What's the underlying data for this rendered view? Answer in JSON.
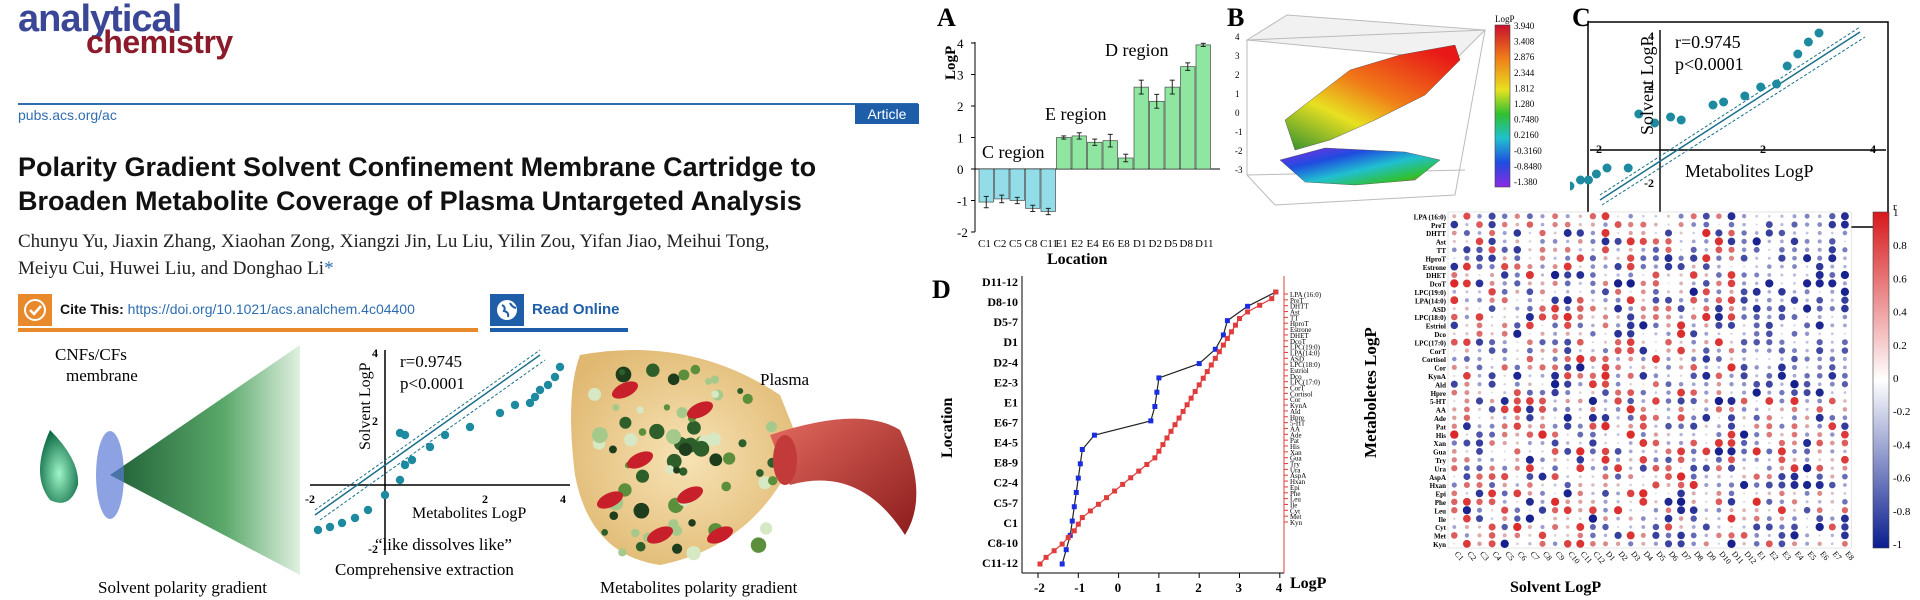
{
  "journal": {
    "logo_line1": "analytical",
    "logo_line2": "chemistry",
    "url": "pubs.acs.org/ac",
    "article_type": "Article"
  },
  "paper": {
    "title_line1": "Polarity Gradient Solvent Confinement Membrane Cartridge to",
    "title_line2": "Broaden Metabolite Coverage of Plasma Untargeted Analysis",
    "authors_line1": "Chunyu Yu, Jiaxin Zhang, Xiaohan Zong, Xiangzi Jin, Lu Liu, Yilin Zou, Yifan Jiao, Meihui Tong,",
    "authors_line2": "Meiyu Cui, Huwei Liu, and Donghao Li",
    "corresponding_mark": "*"
  },
  "cite": {
    "label": "Cite This:",
    "doi": "https://doi.org/10.1021/acs.analchem.4c04400"
  },
  "read_online": {
    "label": "Read Online"
  },
  "graphic": {
    "membrane_label_1": "CNFs/CFs",
    "membrane_label_2": "membrane",
    "caption_left": "Solvent polarity gradient",
    "inset_r": "r=0.9745",
    "inset_p": "p<0.0001",
    "inset_ylabel": "Solvent LogP",
    "inset_xlabel": "Metabolites   LogP",
    "inset_ticks_x": [
      "-2",
      "2",
      "4"
    ],
    "inset_ticks_y": [
      "4",
      "2",
      "-2"
    ],
    "slogan_1": "“like dissolves like”",
    "slogan_2": "Comprehensive extraction",
    "plasma_label": "Plasma",
    "caption_right": "Metabolites polarity gradient"
  },
  "chart_data": [
    {
      "id": "A",
      "panel_label": "A",
      "type": "bar",
      "ylabel": "LogP",
      "xlabel": "Location",
      "ylim": [
        -2,
        4
      ],
      "yticks": [
        "4",
        "3",
        "2",
        "1",
        "0",
        "-1",
        "-2"
      ],
      "categories": [
        "C1",
        "C2",
        "C5",
        "C8",
        "C11",
        "E1",
        "E2",
        "E4",
        "E6",
        "E8",
        "D1",
        "D2",
        "D5",
        "D8",
        "D11"
      ],
      "values": [
        -1.05,
        -0.95,
        -1.0,
        -1.25,
        -1.35,
        1.0,
        1.05,
        0.85,
        0.9,
        0.35,
        2.6,
        2.15,
        2.6,
        3.25,
        3.94
      ],
      "errors": [
        0.18,
        0.12,
        0.1,
        0.1,
        0.1,
        0.05,
        0.1,
        0.1,
        0.2,
        0.12,
        0.22,
        0.22,
        0.22,
        0.12,
        0.05
      ],
      "region_labels": [
        "C region",
        "E region",
        "D region"
      ]
    },
    {
      "id": "B",
      "panel_label": "B",
      "type": "heatmap",
      "colorbar_title": "LogP",
      "colorbar_ticks": [
        "3.940",
        "3.408",
        "2.876",
        "2.344",
        "1.812",
        "1.280",
        "0.7480",
        "0.2160",
        "-0.3160",
        "-0.8480",
        "-1.380"
      ],
      "zticks": [
        "4",
        "3",
        "2",
        "1",
        "0",
        "-1",
        "-2",
        "-3"
      ]
    },
    {
      "id": "C",
      "panel_label": "C",
      "type": "scatter",
      "annotation_r": "r=0.9745",
      "annotation_p": "p<0.0001",
      "ylabel": "Solvent LogP",
      "xlabel": "Metabolites   LogP",
      "xticks": [
        "-2",
        "2",
        "4"
      ],
      "yticks": [
        "4",
        "2",
        "-2"
      ],
      "x": [
        -1.9,
        -1.7,
        -1.5,
        -1.35,
        -1.2,
        -1.0,
        -0.6,
        -0.4,
        -0.1,
        0.2,
        0.4,
        1.0,
        1.2,
        1.6,
        1.9,
        2.2,
        2.4,
        2.6,
        2.8,
        3.0
      ],
      "y": [
        -1.3,
        -1.2,
        -1.0,
        -1.0,
        -0.8,
        -0.6,
        -0.6,
        1.2,
        0.9,
        1.1,
        1.0,
        1.5,
        1.6,
        1.8,
        2.1,
        2.2,
        2.8,
        3.2,
        3.6,
        3.9
      ]
    },
    {
      "id": "D",
      "panel_label": "D",
      "type": "line",
      "ylabel": "Location",
      "xlabel": "LogP",
      "xticks": [
        "-2",
        "-1",
        "0",
        "1",
        "2",
        "3",
        "4"
      ],
      "xlim": [
        -2,
        4
      ],
      "y_categories": [
        "C11-12",
        "C8-10",
        "C1",
        "C5-7",
        "C2-4",
        "E8-9",
        "E4-5",
        "E6-7",
        "E1",
        "E2-3",
        "D2-4",
        "D1",
        "D5-7",
        "D8-10",
        "D11-12"
      ],
      "right_labels": [
        "LPA (16:0)",
        "PreT",
        "DHTT",
        "Ast",
        "TT",
        "HproT",
        "Estrone",
        "DHET",
        "DcoT",
        "LPC(19:0)",
        "LPA(14:0)",
        "ASD",
        "LPC(18:0)",
        "Estriol",
        "Dco",
        "LPC(17:0)",
        "CorT",
        "Cortisol",
        "Cor",
        "KynA",
        "Ald",
        "Hpre",
        "5-HT",
        "AA",
        "Ade",
        "Pat",
        "His",
        "Xan",
        "Gua",
        "Try",
        "Ura",
        "AspA",
        "Hxan",
        "Epi",
        "Phe",
        "Leu",
        "Ile",
        "Cyt",
        "Met",
        "Kyn"
      ],
      "series": [
        {
          "x": [
            -1.4,
            -1.3,
            -1.2,
            -1.15,
            -1.1,
            -1.05,
            -1.0,
            -0.95,
            -0.9,
            -0.6,
            0.8,
            0.9,
            0.95,
            1.0,
            2.0,
            2.4,
            2.6,
            2.7,
            3.2,
            3.9
          ]
        },
        {
          "x": [
            -1.95,
            -1.8,
            -1.6,
            -1.4,
            -1.25,
            -1.1,
            -1.0,
            -0.9,
            -0.7,
            -0.5,
            -0.3,
            -0.1,
            0.1,
            0.3,
            0.5,
            0.7,
            0.9,
            1.0,
            1.1,
            1.2,
            1.3,
            1.4,
            1.5,
            1.6,
            1.7,
            1.8,
            1.9,
            2.0,
            2.1,
            2.2,
            2.3,
            2.4,
            2.5,
            2.6,
            2.7,
            2.8,
            2.9,
            3.0,
            3.2,
            3.5,
            3.8,
            3.9
          ]
        }
      ]
    },
    {
      "id": "E",
      "panel_label": "E",
      "type": "heatmap",
      "colorbar_title": "r",
      "colorbar_ticks": [
        "1",
        "0.8",
        "0.6",
        "0.4",
        "0.2",
        "0",
        "-0.2",
        "-0.4",
        "-0.6",
        "-0.8",
        "-1"
      ],
      "ylabel": "Metaboletes LogP",
      "xlabel": "Solvent LogP",
      "rows": [
        "LPA (16:0)",
        "PreT",
        "DHTT",
        "Ast",
        "TT",
        "HproT",
        "Estrone",
        "DHET",
        "DcoT",
        "LPC(19:0)",
        "LPA(14:0)",
        "ASD",
        "LPC(18:0)",
        "Estriol",
        "Dco",
        "LPC(17:0)",
        "CorT",
        "Cortisol",
        "Cor",
        "KynA",
        "Ald",
        "Hpre",
        "5-HT",
        "AA",
        "Ade",
        "Pat",
        "His",
        "Xan",
        "Gua",
        "Try",
        "Ura",
        "AspA",
        "Hxan",
        "Epi",
        "Phe",
        "Leu",
        "Ile",
        "Cyt",
        "Met",
        "Kyn"
      ],
      "columns": [
        "C1",
        "C2",
        "C3",
        "C4",
        "C5",
        "C6",
        "C7",
        "C8",
        "C9",
        "C10",
        "C11",
        "C12",
        "D1",
        "D2",
        "D3",
        "D4",
        "D5",
        "D6",
        "D7",
        "D8",
        "D9",
        "D10",
        "D11",
        "D12",
        "E1",
        "E2",
        "E3",
        "E4",
        "E5",
        "E6",
        "E7",
        "E8"
      ]
    }
  ]
}
